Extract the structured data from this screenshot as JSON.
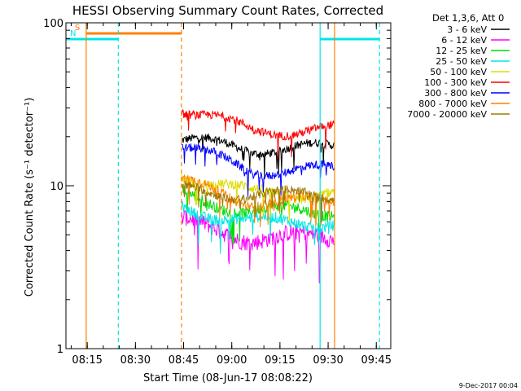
{
  "chart_data": {
    "type": "line",
    "title": "HESSI Observing Summary Count Rates, Corrected",
    "xlabel": "Start Time (08-Jun-17 08:08:22)",
    "ylabel": "Corrected Count Rate (s⁻¹ detector⁻¹)",
    "yscale": "log",
    "ylim": [
      1,
      100
    ],
    "xlim": [
      "08:08:22",
      "09:49:30"
    ],
    "xticks": [
      "08:15",
      "08:30",
      "08:45",
      "09:00",
      "09:15",
      "09:30",
      "09:45"
    ],
    "yticks": [
      {
        "value": 1,
        "label": "1"
      },
      {
        "value": 10,
        "label": "10"
      },
      {
        "value": 100,
        "label": "100"
      }
    ],
    "legend_placement": "right",
    "legend_title": "Det 1,3,6, Att 0",
    "series": [
      {
        "name": "3 - 6 keV",
        "color": "#000000",
        "start": 19,
        "end": 17,
        "noise": 0.06
      },
      {
        "name": "6 - 12 keV",
        "color": "#ff00ff",
        "start": 6.0,
        "end": 4.8,
        "noise": 0.12
      },
      {
        "name": "12 - 25 keV",
        "color": "#00dd00",
        "start": 8.8,
        "end": 7.0,
        "noise": 0.08
      },
      {
        "name": "25 - 50 keV",
        "color": "#00e5e5",
        "start": 7.4,
        "end": 6.0,
        "noise": 0.08
      },
      {
        "name": "50 - 100 keV",
        "color": "#dddd00",
        "start": 12.0,
        "end": 9.0,
        "noise": 0.07
      },
      {
        "name": "100 - 300 keV",
        "color": "#ff0000",
        "start": 30.0,
        "end": 22.0,
        "noise": 0.06
      },
      {
        "name": "300 - 800 keV",
        "color": "#0000ff",
        "start": 17.5,
        "end": 12.5,
        "noise": 0.06
      },
      {
        "name": "800 - 7000 keV",
        "color": "#ff8000",
        "start": 10.5,
        "end": 8.0,
        "noise": 0.07
      },
      {
        "name": "7000 - 20000 keV",
        "color": "#a07800",
        "start": 9.5,
        "end": 8.8,
        "noise": 0.06
      }
    ],
    "data_interval": [
      "08:44:20",
      "09:32:00"
    ],
    "flags": [
      {
        "name": "S",
        "color": "#ff8000",
        "segments": [
          [
            "08:14:40",
            "08:44:20"
          ]
        ]
      },
      {
        "name": "N",
        "color": "#00e5e5",
        "segments": [
          [
            "08:08:22",
            "08:24:40"
          ],
          [
            "09:27:30",
            "09:46:00"
          ]
        ]
      }
    ],
    "vlines": [
      {
        "time": "08:14:40",
        "color": "#ff8000",
        "style": "solid"
      },
      {
        "time": "08:24:40",
        "color": "#00e5e5",
        "style": "dashed"
      },
      {
        "time": "08:44:20",
        "color": "#ff8000",
        "style": "dashed"
      },
      {
        "time": "09:27:30",
        "color": "#00e5e5",
        "style": "solid"
      },
      {
        "time": "09:32:00",
        "color": "#ff8000",
        "style": "solid"
      },
      {
        "time": "09:46:00",
        "color": "#00e5e5",
        "style": "dashed"
      }
    ],
    "footer": "9-Dec-2017 00:04"
  }
}
